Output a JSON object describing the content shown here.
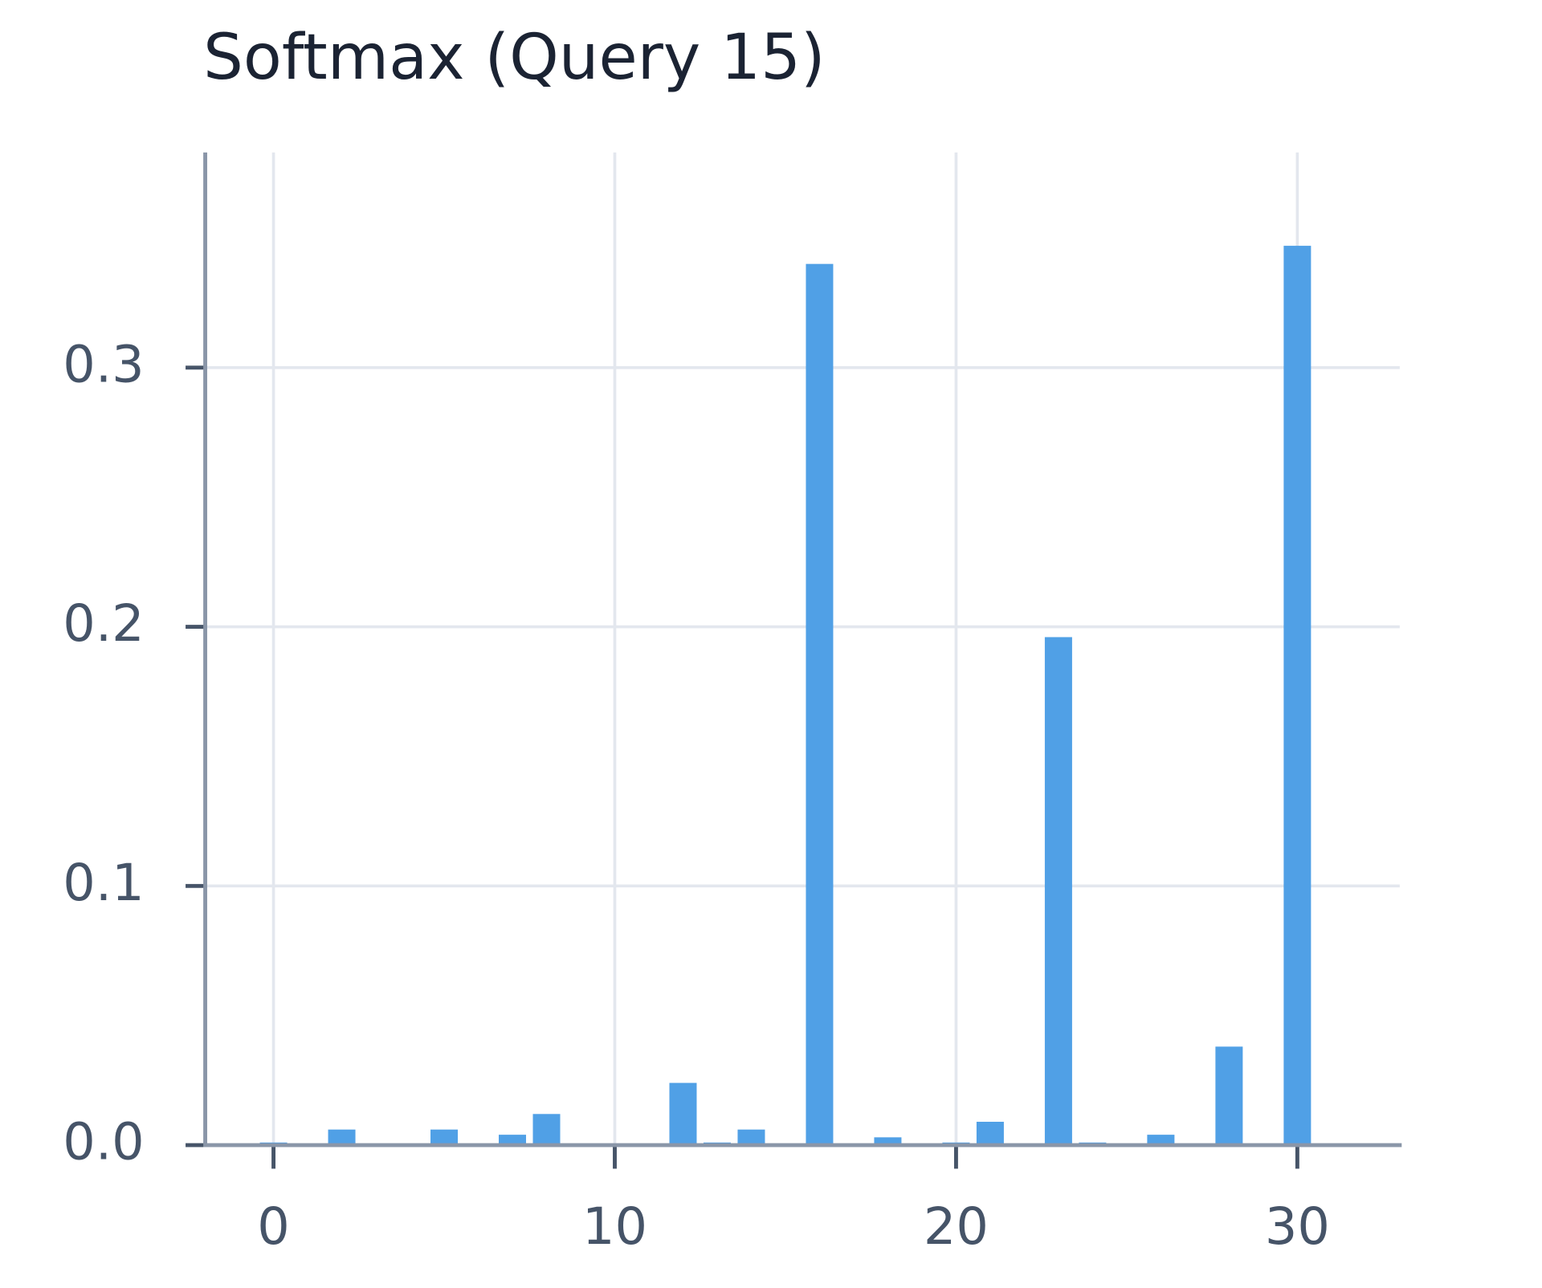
{
  "chart_data": {
    "type": "bar",
    "title": "Softmax (Query 15)",
    "x": [
      0,
      1,
      2,
      3,
      4,
      5,
      6,
      7,
      8,
      9,
      10,
      11,
      12,
      13,
      14,
      15,
      16,
      17,
      18,
      19,
      20,
      21,
      22,
      23,
      24,
      25,
      26,
      27,
      28,
      29,
      30,
      31
    ],
    "values": [
      0.001,
      0,
      0.006,
      0,
      0,
      0.006,
      0,
      0.004,
      0.012,
      0,
      0,
      0,
      0.024,
      0.001,
      0.006,
      0,
      0.34,
      0,
      0.003,
      0,
      0.001,
      0.009,
      0,
      0.196,
      0.001,
      0,
      0.004,
      0,
      0.038,
      0,
      0.347,
      0
    ],
    "color": "#4c9ee6",
    "xlim": [
      -2,
      33
    ],
    "xticks": [
      0,
      10,
      20,
      30
    ],
    "ylim": [
      0,
      0.383
    ],
    "yticks": [
      {
        "value": 0,
        "label": "0.0"
      },
      0.1,
      0.2,
      0.3
    ],
    "grid": true
  }
}
